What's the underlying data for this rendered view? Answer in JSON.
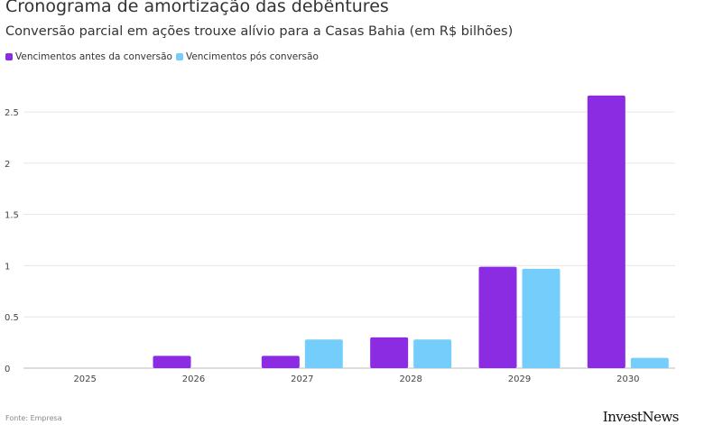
{
  "header": {
    "title": "Cronograma de amortização das debêntures",
    "subtitle": "Conversão parcial em ações trouxe alívio para a Casas Bahia (em R$ bilhões)"
  },
  "footer": {
    "source": "Fonte: Empresa",
    "brand": "InvestNews"
  },
  "chart_data": {
    "type": "bar",
    "title": "Cronograma de amortização das debêntures",
    "subtitle": "Conversão parcial em ações trouxe alívio para a Casas Bahia (em R$ bilhões)",
    "xlabel": "",
    "ylabel": "",
    "categories": [
      "2025",
      "2026",
      "2027",
      "2028",
      "2029",
      "2030"
    ],
    "series": [
      {
        "name": "Vencimentos antes da conversão",
        "color": "#8b2be2",
        "values": [
          0,
          0.12,
          0.12,
          0.3,
          0.99,
          2.66
        ]
      },
      {
        "name": "Vencimentos pós conversão",
        "color": "#74cdfa",
        "values": [
          0,
          0,
          0.28,
          0.28,
          0.97,
          0.1
        ]
      }
    ],
    "ylim": [
      0,
      2.8
    ],
    "yticks": [
      0,
      0.5,
      1,
      1.5,
      2,
      2.5
    ],
    "ytick_labels": [
      "0",
      "0.5",
      "1",
      "1.5",
      "2",
      "2.5"
    ],
    "grid": true,
    "legend": "top-left"
  }
}
